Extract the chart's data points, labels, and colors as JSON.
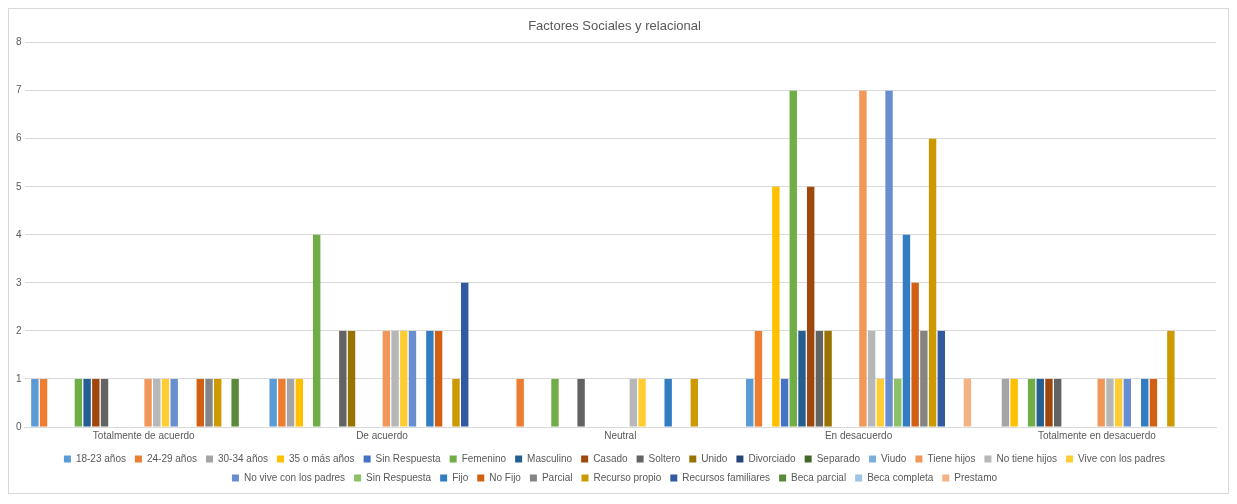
{
  "chart_data": {
    "type": "bar",
    "title": "Factores Sociales y relacional",
    "categories": [
      "Totalmente de acuerdo",
      "De acuerdo",
      "Neutral",
      "En desacuerdo",
      "Totalmente en desacuerdo"
    ],
    "ylim": [
      0,
      8
    ],
    "yticks": [
      0,
      1,
      2,
      3,
      4,
      5,
      6,
      7,
      8
    ],
    "grid": "y",
    "legend": "bottom",
    "series": [
      {
        "name": "18-23 años",
        "color": "#5b9bd5",
        "values": [
          1,
          1,
          null,
          1,
          null
        ]
      },
      {
        "name": "24-29 años",
        "color": "#ed7d31",
        "values": [
          1,
          1,
          1,
          2,
          null
        ]
      },
      {
        "name": "30-34 años",
        "color": "#a5a5a5",
        "values": [
          null,
          1,
          null,
          null,
          1
        ]
      },
      {
        "name": "35 o más años",
        "color": "#ffc000",
        "values": [
          null,
          1,
          null,
          5,
          1
        ]
      },
      {
        "name": "Sin Respuesta",
        "color": "#4472c4",
        "values": [
          null,
          null,
          null,
          1,
          null
        ]
      },
      {
        "name": "Femenino",
        "color": "#70ad47",
        "values": [
          1,
          4,
          1,
          7,
          1
        ]
      },
      {
        "name": "Masculino",
        "color": "#255e91",
        "values": [
          1,
          null,
          null,
          2,
          1
        ]
      },
      {
        "name": "Casado",
        "color": "#9e480e",
        "values": [
          1,
          null,
          null,
          5,
          1
        ]
      },
      {
        "name": "Soltero",
        "color": "#636363",
        "values": [
          1,
          2,
          1,
          2,
          1
        ]
      },
      {
        "name": "Unido",
        "color": "#997300",
        "values": [
          null,
          2,
          null,
          2,
          null
        ]
      },
      {
        "name": "Divorciado",
        "color": "#264478",
        "values": [
          null,
          null,
          null,
          null,
          null
        ]
      },
      {
        "name": "Separado",
        "color": "#43682b",
        "values": [
          null,
          null,
          null,
          null,
          null
        ]
      },
      {
        "name": "Viudo",
        "color": "#7cafdd",
        "values": [
          null,
          null,
          null,
          null,
          null
        ]
      },
      {
        "name": "Tiene hijos",
        "color": "#f1975a",
        "values": [
          1,
          2,
          null,
          7,
          1
        ]
      },
      {
        "name": "No tiene hijos",
        "color": "#b7b7b7",
        "values": [
          1,
          2,
          1,
          2,
          1
        ]
      },
      {
        "name": "Vive con los padres",
        "color": "#ffcd33",
        "values": [
          1,
          2,
          1,
          1,
          1
        ]
      },
      {
        "name": "No vive con los padres",
        "color": "#698ed0",
        "values": [
          1,
          2,
          null,
          7,
          1
        ]
      },
      {
        "name": "Sin Respuesta",
        "color": "#8cc168",
        "values": [
          null,
          null,
          null,
          1,
          null
        ]
      },
      {
        "name": "Fijo",
        "color": "#327dc2",
        "values": [
          null,
          2,
          1,
          4,
          1
        ]
      },
      {
        "name": "No Fijo",
        "color": "#d26012",
        "values": [
          1,
          2,
          null,
          3,
          1
        ]
      },
      {
        "name": "Parcial",
        "color": "#848484",
        "values": [
          1,
          null,
          null,
          2,
          null
        ]
      },
      {
        "name": "Recurso propio",
        "color": "#cc9a00",
        "values": [
          1,
          1,
          1,
          6,
          2
        ]
      },
      {
        "name": "Recursos familiares",
        "color": "#335aa1",
        "values": [
          null,
          3,
          null,
          2,
          null
        ]
      },
      {
        "name": "Beca parcial",
        "color": "#5a8a39",
        "values": [
          1,
          null,
          null,
          null,
          null
        ]
      },
      {
        "name": "Beca completa",
        "color": "#9dc3e6",
        "values": [
          null,
          null,
          null,
          null,
          null
        ]
      },
      {
        "name": "Prestamo",
        "color": "#f4b183",
        "values": [
          null,
          null,
          null,
          1,
          null
        ]
      }
    ]
  }
}
